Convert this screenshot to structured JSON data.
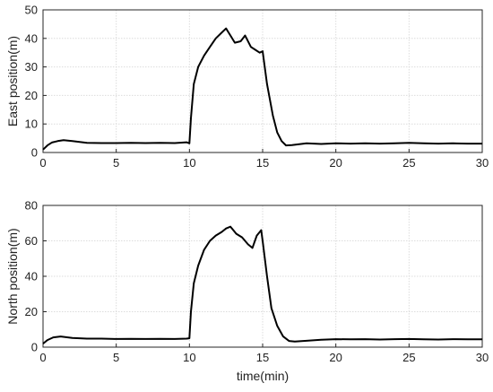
{
  "chart_data": [
    {
      "type": "line",
      "title": "",
      "xlabel": "",
      "ylabel": "East position(m)",
      "xlim": [
        0,
        30
      ],
      "ylim": [
        0,
        50
      ],
      "xticks": [
        0,
        5,
        10,
        15,
        20,
        25,
        30
      ],
      "yticks": [
        0,
        10,
        20,
        30,
        40,
        50
      ],
      "grid": true,
      "series": [
        {
          "color": "#000000",
          "x": [
            0,
            0.3,
            0.6,
            1.0,
            1.4,
            2.0,
            3.0,
            4.0,
            5.0,
            6.0,
            7.0,
            8.0,
            9.0,
            9.8,
            10.0,
            10.1,
            10.3,
            10.6,
            11.0,
            11.4,
            11.8,
            12.2,
            12.5,
            12.8,
            13.1,
            13.5,
            13.8,
            14.2,
            14.5,
            14.8,
            15.0,
            15.3,
            15.7,
            16.0,
            16.3,
            16.6,
            17.0,
            18.0,
            19.0,
            20.0,
            21.0,
            22.0,
            23.0,
            24.0,
            25.0,
            26.0,
            27.0,
            28.0,
            29.0,
            30.0
          ],
          "y": [
            1.0,
            2.5,
            3.5,
            4.0,
            4.3,
            4.0,
            3.4,
            3.3,
            3.3,
            3.4,
            3.3,
            3.4,
            3.3,
            3.6,
            3.2,
            12,
            24,
            30,
            34,
            37,
            40,
            42,
            43.5,
            41,
            38.5,
            39,
            41,
            37,
            36,
            35,
            35.5,
            24,
            13,
            7,
            4,
            2.5,
            2.6,
            3.2,
            3.0,
            3.2,
            3.1,
            3.2,
            3.1,
            3.2,
            3.4,
            3.2,
            3.1,
            3.2,
            3.1,
            3.1
          ]
        }
      ]
    },
    {
      "type": "line",
      "title": "",
      "xlabel": "time(min)",
      "ylabel": "North  position(m)",
      "xlim": [
        0,
        30
      ],
      "ylim": [
        0,
        80
      ],
      "xticks": [
        0,
        5,
        10,
        15,
        20,
        25,
        30
      ],
      "yticks": [
        0,
        20,
        40,
        60,
        80
      ],
      "grid": true,
      "series": [
        {
          "color": "#000000",
          "x": [
            0,
            0.3,
            0.7,
            1.2,
            2.0,
            3.0,
            4.0,
            5.0,
            6.0,
            7.0,
            8.0,
            9.0,
            9.8,
            10.0,
            10.1,
            10.3,
            10.6,
            11.0,
            11.4,
            11.8,
            12.2,
            12.5,
            12.8,
            13.2,
            13.6,
            14.0,
            14.3,
            14.6,
            14.9,
            15.0,
            15.3,
            15.6,
            16.0,
            16.4,
            16.8,
            17.2,
            18.0,
            19.0,
            20.0,
            21.0,
            22.0,
            23.0,
            24.0,
            25.0,
            26.0,
            27.0,
            28.0,
            29.0,
            30.0
          ],
          "y": [
            2,
            4,
            5.5,
            6,
            5.2,
            4.8,
            4.8,
            4.6,
            4.7,
            4.6,
            4.7,
            4.6,
            4.8,
            5,
            20,
            36,
            46,
            55,
            60,
            63,
            65,
            67,
            68,
            64,
            62,
            58,
            56,
            63,
            66,
            60,
            40,
            22,
            12,
            6,
            3.5,
            3.2,
            3.6,
            4.2,
            4.5,
            4.4,
            4.5,
            4.3,
            4.5,
            4.6,
            4.4,
            4.3,
            4.5,
            4.4,
            4.4
          ]
        }
      ]
    }
  ]
}
